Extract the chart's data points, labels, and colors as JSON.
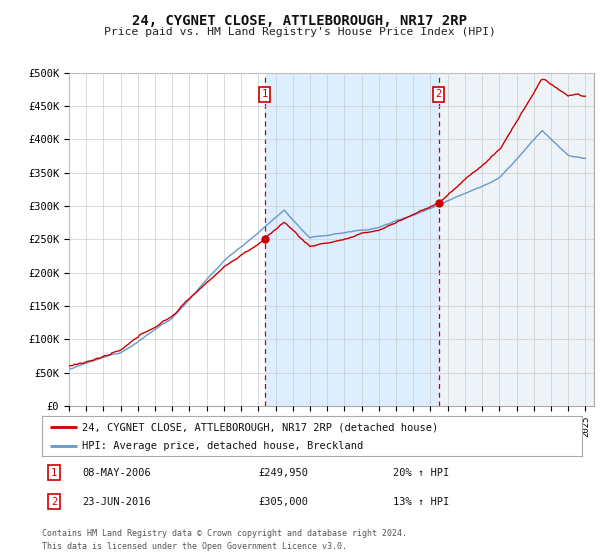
{
  "title": "24, CYGNET CLOSE, ATTLEBOROUGH, NR17 2RP",
  "subtitle": "Price paid vs. HM Land Registry's House Price Index (HPI)",
  "legend_line1": "24, CYGNET CLOSE, ATTLEBOROUGH, NR17 2RP (detached house)",
  "legend_line2": "HPI: Average price, detached house, Breckland",
  "sale1_date": "08-MAY-2006",
  "sale1_price": "£249,950",
  "sale1_hpi": "20% ↑ HPI",
  "sale1_year": 2006.36,
  "sale1_value": 249950,
  "sale2_date": "23-JUN-2016",
  "sale2_price": "£305,000",
  "sale2_hpi": "13% ↑ HPI",
  "sale2_year": 2016.48,
  "sale2_value": 305000,
  "footer1": "Contains HM Land Registry data © Crown copyright and database right 2024.",
  "footer2": "This data is licensed under the Open Government Licence v3.0.",
  "red_color": "#cc0000",
  "blue_color": "#6699cc",
  "shade_color": "#ddeeff",
  "bg_color": "#f0f4f8",
  "ylim": [
    0,
    500000
  ],
  "xlim_start": 1995.0,
  "xlim_end": 2025.5
}
